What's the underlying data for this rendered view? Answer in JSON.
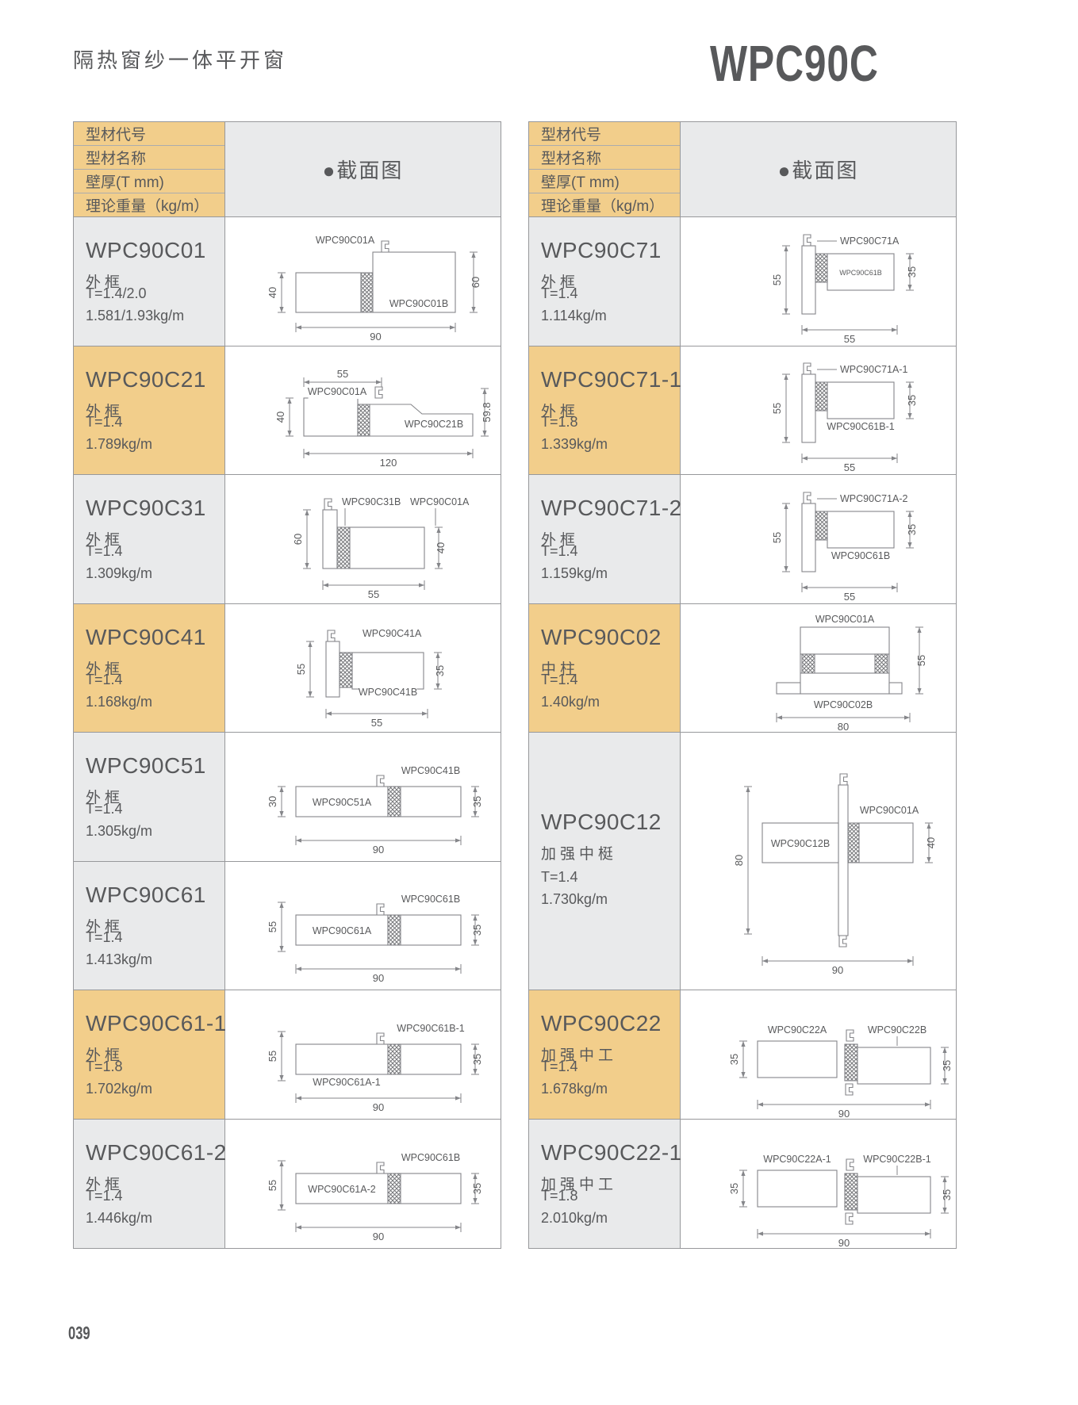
{
  "page": {
    "title": "隔热窗纱一体平开窗",
    "series": "WPC90C",
    "page_number": "039"
  },
  "colors": {
    "accent_yellow": "#F2CE8B",
    "row_gray": "#E9EAEB",
    "text": "#58595B",
    "line": "#97989B"
  },
  "table_header": {
    "rows": [
      "型材代号",
      "型材名称",
      "壁厚(T mm)",
      "理论重量（kg/m）"
    ],
    "section_label": "●截面图"
  },
  "tables": [
    {
      "id": "left",
      "rows": [
        {
          "code": "WPC90C01",
          "name": "外框",
          "thickness": "T=1.4/2.0",
          "weight": "1.581/1.93kg/m",
          "highlight": false,
          "diagram": {
            "shape": "stepRight",
            "labels": [
              {
                "text": "WPC90C01A",
                "pos": "top"
              },
              {
                "text": "WPC90C01B",
                "pos": "bottom-right"
              }
            ],
            "dims": [
              {
                "side": "left",
                "value": "40"
              },
              {
                "side": "right",
                "value": "60"
              },
              {
                "side": "bottom",
                "value": "90"
              }
            ]
          }
        },
        {
          "code": "WPC90C21",
          "name": "外框",
          "thickness": "T=1.4",
          "weight": "1.789kg/m",
          "highlight": true,
          "diagram": {
            "shape": "stepWide",
            "labels": [
              {
                "text": "WPC90C01A",
                "pos": "inside-top"
              },
              {
                "text": "WPC90C21B",
                "pos": "inside-right"
              }
            ],
            "dims": [
              {
                "side": "top",
                "value": "55"
              },
              {
                "side": "left",
                "value": "40"
              },
              {
                "side": "right",
                "value": "59.8"
              },
              {
                "side": "bottom",
                "value": "120"
              }
            ]
          }
        },
        {
          "code": "WPC90C31",
          "name": "外框",
          "thickness": "T=1.4",
          "weight": "1.309kg/m",
          "highlight": false,
          "diagram": {
            "shape": "midTall",
            "labels": [
              {
                "text": "WPC90C31B",
                "pos": "top-left"
              },
              {
                "text": "WPC90C01A",
                "pos": "top-right"
              }
            ],
            "dims": [
              {
                "side": "left",
                "value": "60"
              },
              {
                "side": "right",
                "value": "40"
              },
              {
                "side": "bottom",
                "value": "55"
              }
            ]
          }
        },
        {
          "code": "WPC90C41",
          "name": "外框",
          "thickness": "T=1.4",
          "weight": "1.168kg/m",
          "highlight": true,
          "diagram": {
            "shape": "midSmall",
            "labels": [
              {
                "text": "WPC90C41A",
                "pos": "top-right"
              },
              {
                "text": "WPC90C41B",
                "pos": "bottom"
              }
            ],
            "dims": [
              {
                "side": "left",
                "value": "55"
              },
              {
                "side": "right",
                "value": "35"
              },
              {
                "side": "bottom",
                "value": "55"
              }
            ]
          }
        },
        {
          "code": "WPC90C51",
          "name": "外框",
          "thickness": "T=1.4",
          "weight": "1.305kg/m",
          "highlight": false,
          "diagram": {
            "shape": "longLow",
            "labels": [
              {
                "text": "WPC90C41B",
                "pos": "top-right"
              },
              {
                "text": "WPC90C51A",
                "pos": "inside-left"
              }
            ],
            "dims": [
              {
                "side": "left",
                "value": "30"
              },
              {
                "side": "right",
                "value": "35"
              },
              {
                "side": "bottom",
                "value": "90"
              }
            ]
          }
        },
        {
          "code": "WPC90C61",
          "name": "外框",
          "thickness": "T=1.4",
          "weight": "1.413kg/m",
          "highlight": false,
          "diagram": {
            "shape": "longLow",
            "labels": [
              {
                "text": "WPC90C61B",
                "pos": "top-right"
              },
              {
                "text": "WPC90C61A",
                "pos": "inside-left"
              }
            ],
            "dims": [
              {
                "side": "left",
                "value": "55"
              },
              {
                "side": "right",
                "value": "35"
              },
              {
                "side": "bottom",
                "value": "90"
              }
            ]
          }
        },
        {
          "code": "WPC90C61-1",
          "name": "外框",
          "thickness": "T=1.8",
          "weight": "1.702kg/m",
          "highlight": true,
          "diagram": {
            "shape": "longLow",
            "labels": [
              {
                "text": "WPC90C61B-1",
                "pos": "top-right"
              },
              {
                "text": "WPC90C61A-1",
                "pos": "bottom-left"
              }
            ],
            "dims": [
              {
                "side": "left",
                "value": "55"
              },
              {
                "side": "right",
                "value": "35"
              },
              {
                "side": "bottom",
                "value": "90"
              }
            ]
          }
        },
        {
          "code": "WPC90C61-2",
          "name": "外框",
          "thickness": "T=1.4",
          "weight": "1.446kg/m",
          "highlight": false,
          "diagram": {
            "shape": "longLow",
            "labels": [
              {
                "text": "WPC90C61B",
                "pos": "top-right"
              },
              {
                "text": "WPC90C61A-2",
                "pos": "inside-left"
              }
            ],
            "dims": [
              {
                "side": "left",
                "value": "55"
              },
              {
                "side": "right",
                "value": "35"
              },
              {
                "side": "bottom",
                "value": "90"
              }
            ]
          }
        }
      ]
    },
    {
      "id": "right",
      "rows": [
        {
          "code": "WPC90C71",
          "name": "外框",
          "thickness": "T=1.4",
          "weight": "1.114kg/m",
          "highlight": false,
          "diagram": {
            "shape": "vert",
            "labels": [
              {
                "text": "WPC90C71A",
                "pos": "top-right"
              },
              {
                "text": "WPC90C61B",
                "pos": "inside-right-small"
              }
            ],
            "dims": [
              {
                "side": "left",
                "value": "55"
              },
              {
                "side": "right",
                "value": "35"
              },
              {
                "side": "bottom",
                "value": "55"
              }
            ]
          }
        },
        {
          "code": "WPC90C71-1",
          "name": "外框",
          "thickness": "T=1.8",
          "weight": "1.339kg/m",
          "highlight": true,
          "diagram": {
            "shape": "vert",
            "labels": [
              {
                "text": "WPC90C71A-1",
                "pos": "top-right"
              },
              {
                "text": "WPC90C61B-1",
                "pos": "bottom"
              }
            ],
            "dims": [
              {
                "side": "left",
                "value": "55"
              },
              {
                "side": "right",
                "value": "35"
              },
              {
                "side": "bottom",
                "value": "55"
              }
            ]
          }
        },
        {
          "code": "WPC90C71-2",
          "name": "外框",
          "thickness": "T=1.4",
          "weight": "1.159kg/m",
          "highlight": false,
          "diagram": {
            "shape": "vert",
            "labels": [
              {
                "text": "WPC90C71A-2",
                "pos": "top-right"
              },
              {
                "text": "WPC90C61B",
                "pos": "bottom"
              }
            ],
            "dims": [
              {
                "side": "left",
                "value": "55"
              },
              {
                "side": "right",
                "value": "35"
              },
              {
                "side": "bottom",
                "value": "55"
              }
            ]
          }
        },
        {
          "code": "WPC90C02",
          "name": "中柱",
          "thickness": "T=1.4",
          "weight": "1.40kg/m",
          "highlight": true,
          "diagram": {
            "shape": "column",
            "labels": [
              {
                "text": "WPC90C01A",
                "pos": "top"
              },
              {
                "text": "WPC90C02B",
                "pos": "bottom"
              }
            ],
            "dims": [
              {
                "side": "right",
                "value": "55"
              },
              {
                "side": "bottom",
                "value": "80"
              }
            ]
          }
        },
        {
          "code": "WPC90C12",
          "name": "加强中梃",
          "thickness": "T=1.4",
          "weight": "1.730kg/m",
          "highlight": false,
          "tall": true,
          "diagram": {
            "shape": "cross",
            "labels": [
              {
                "text": "WPC90C01A",
                "pos": "top-right"
              },
              {
                "text": "WPC90C12B",
                "pos": "inside-left"
              }
            ],
            "dims": [
              {
                "side": "left",
                "value": "80"
              },
              {
                "side": "right",
                "value": "40"
              },
              {
                "side": "bottom",
                "value": "90"
              }
            ]
          }
        },
        {
          "code": "WPC90C22",
          "name": "加强中工",
          "thickness": "T=1.4",
          "weight": "1.678kg/m",
          "highlight": true,
          "diagram": {
            "shape": "twin",
            "labels": [
              {
                "text": "WPC90C22A",
                "pos": "top-left"
              },
              {
                "text": "WPC90C22B",
                "pos": "top-right"
              }
            ],
            "dims": [
              {
                "side": "left",
                "value": "35"
              },
              {
                "side": "right",
                "value": "35"
              },
              {
                "side": "bottom",
                "value": "90"
              }
            ]
          }
        },
        {
          "code": "WPC90C22-1",
          "name": "加强中工",
          "thickness": "T=1.8",
          "weight": "2.010kg/m",
          "highlight": false,
          "diagram": {
            "shape": "twin",
            "labels": [
              {
                "text": "WPC90C22A-1",
                "pos": "top-left"
              },
              {
                "text": "WPC90C22B-1",
                "pos": "top-right"
              }
            ],
            "dims": [
              {
                "side": "left",
                "value": "35"
              },
              {
                "side": "right",
                "value": "35"
              },
              {
                "side": "bottom",
                "value": "90"
              }
            ]
          }
        }
      ]
    }
  ]
}
